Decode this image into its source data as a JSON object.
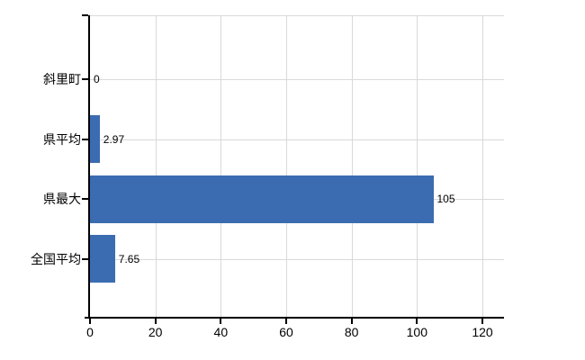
{
  "chart_data": {
    "type": "bar",
    "orientation": "horizontal",
    "title": "",
    "xlabel": "",
    "ylabel": "",
    "categories": [
      "斜里町",
      "県平均",
      "県最大",
      "全国平均"
    ],
    "values": [
      0,
      2.97,
      105,
      7.65
    ],
    "value_labels": [
      "0",
      "2.97",
      "105",
      "7.65"
    ],
    "xticks": [
      0,
      20,
      40,
      60,
      80,
      100,
      120
    ],
    "xlim": [
      0,
      126.6
    ],
    "grid": "vertical lines at x ticks, horizontal lines at category centers, top border line",
    "legend": "none",
    "colors": {
      "bar": "#3b6cb1",
      "gridline": "#d9d9d9",
      "axis": "#000000",
      "text": "#000000",
      "background": "#ffffff"
    }
  }
}
